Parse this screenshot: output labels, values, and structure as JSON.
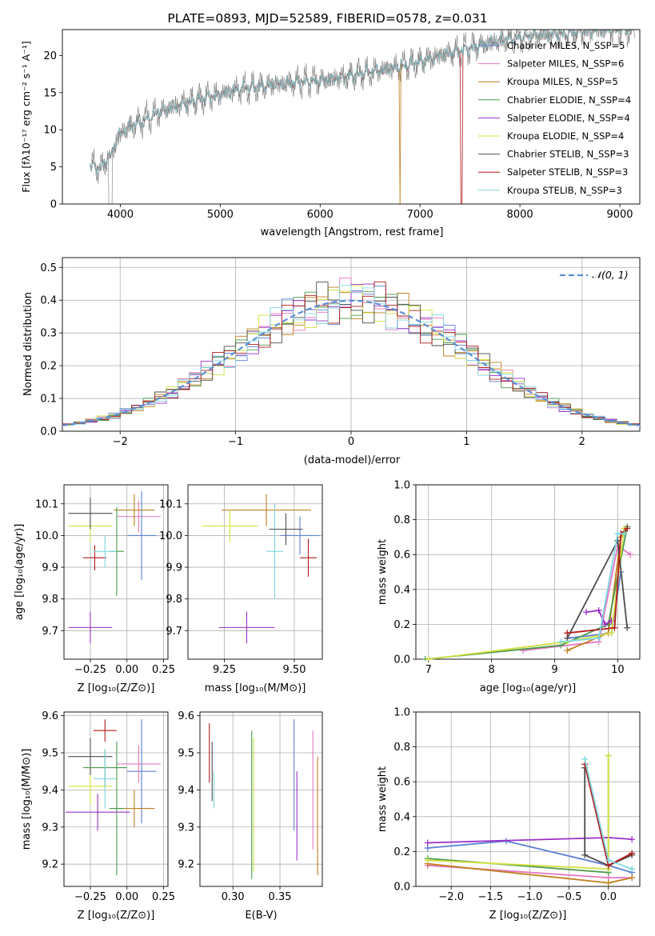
{
  "figure_title": "PLATE=0893, MJD=52589, FIBERID=0578, z=0.031",
  "chart_data": [
    {
      "id": "spectrum",
      "type": "line",
      "xlabel": "wavelength [Angstrom, rest frame]",
      "ylabel": "Flux [fλ10⁻¹⁷ erg cm⁻² s⁻¹ A⁻¹]",
      "xlim": [
        3420,
        9200
      ],
      "ylim": [
        0,
        23.5
      ],
      "xticks": [
        4000,
        5000,
        6000,
        7000,
        8000,
        9000
      ],
      "yticks": [
        0,
        5,
        10,
        15,
        20
      ],
      "data_trend": {
        "x": [
          3700,
          3800,
          3900,
          4000,
          4100,
          4200,
          4300,
          4500,
          4700,
          5000,
          5200,
          5500,
          5800,
          6000,
          6200,
          6500,
          6800,
          7000,
          7200,
          7500,
          7800,
          8000,
          8200,
          8400,
          8600,
          8800,
          9000
        ],
        "y": [
          5.2,
          4.8,
          6.5,
          9.5,
          10.5,
          11.0,
          11.8,
          13.0,
          13.8,
          14.8,
          15.5,
          16.0,
          16.5,
          16.6,
          17.0,
          17.8,
          18.5,
          19.2,
          20.0,
          21.0,
          22.0,
          22.5,
          22.8,
          22.9,
          23.2,
          23.5,
          23.5
        ]
      },
      "series": [
        {
          "name": "Chabrier MILES, N_SSP=5",
          "color": "#5b7fd4"
        },
        {
          "name": "Salpeter MILES, N_SSP=6",
          "color": "#e377c2"
        },
        {
          "name": "Kroupa MILES, N_SSP=5",
          "color": "#c07f1e"
        },
        {
          "name": "Chabrier ELODIE, N_SSP=4",
          "color": "#4c9a4c"
        },
        {
          "name": "Salpeter ELODIE, N_SSP=4",
          "color": "#9b30c8"
        },
        {
          "name": "Kroupa ELODIE, N_SSP=4",
          "color": "#d4e040"
        },
        {
          "name": "Chabrier STELIB, N_SSP=3",
          "color": "#4d4d4d"
        },
        {
          "name": "Salpeter STELIB, N_SSP=3",
          "color": "#b01c1c"
        },
        {
          "name": "Kroupa STELIB, N_SSP=3",
          "color": "#7fd6e0"
        }
      ]
    },
    {
      "id": "residuals",
      "type": "line",
      "xlabel": "(data-model)/error",
      "ylabel": "Normed distribution",
      "xlim": [
        -2.5,
        2.5
      ],
      "ylim": [
        0,
        0.53
      ],
      "xticks": [
        -2,
        -1,
        0,
        1,
        2
      ],
      "yticks": [
        0.0,
        0.1,
        0.2,
        0.3,
        0.4,
        0.5
      ],
      "legend": "𝒩(0, 1)",
      "legend_position": "top-right",
      "grid": true
    },
    {
      "id": "age_vs_Z",
      "type": "scatter",
      "xlabel": "Z [log₁₀(Z/Z⊙)]",
      "ylabel": "age  [log₁₀(age/yr)]",
      "xlim": [
        -0.43,
        0.28
      ],
      "ylim": [
        9.61,
        10.16
      ],
      "xticks": [
        -0.25,
        0.0,
        0.25
      ],
      "yticks": [
        9.7,
        9.8,
        9.9,
        10.0,
        10.1
      ],
      "grid": true,
      "points": [
        {
          "x": 0.1,
          "y": 10.0,
          "xerr": 0.1,
          "yerr": 0.14,
          "color": "#5b7fd4"
        },
        {
          "x": 0.08,
          "y": 10.06,
          "xerr": 0.15,
          "yerr": 0.05,
          "color": "#e377c2"
        },
        {
          "x": 0.05,
          "y": 10.08,
          "xerr": 0.14,
          "yerr": 0.05,
          "color": "#c07f1e"
        },
        {
          "x": -0.07,
          "y": 9.95,
          "xerr": 0.05,
          "yerr": 0.14,
          "color": "#4c9a4c"
        },
        {
          "x": -0.25,
          "y": 9.71,
          "xerr": 0.15,
          "yerr": 0.05,
          "color": "#9b30c8"
        },
        {
          "x": -0.25,
          "y": 10.03,
          "xerr": 0.15,
          "yerr": 0.05,
          "color": "#d4e040"
        },
        {
          "x": -0.25,
          "y": 10.07,
          "xerr": 0.15,
          "yerr": 0.05,
          "color": "#4d4d4d"
        },
        {
          "x": -0.22,
          "y": 9.93,
          "xerr": 0.08,
          "yerr": 0.04,
          "color": "#b01c1c"
        },
        {
          "x": -0.15,
          "y": 9.95,
          "xerr": 0.08,
          "yerr": 0.05,
          "color": "#7fd6e0"
        }
      ]
    },
    {
      "id": "age_vs_mass",
      "type": "scatter",
      "xlabel": "mass [log₁₀(M/M⊙)]",
      "xlim": [
        9.12,
        9.6
      ],
      "ylim": [
        9.61,
        10.16
      ],
      "xticks": [
        9.25,
        9.5
      ],
      "yticks": [
        9.7,
        9.8,
        9.9,
        10.0,
        10.1
      ],
      "grid": true,
      "points": [
        {
          "x": 9.52,
          "y": 10.0,
          "xerr": 0.07,
          "yerr": 0.06,
          "color": "#5b7fd4"
        },
        {
          "x": 9.4,
          "y": 10.08,
          "xerr": 0.16,
          "yerr": 0.05,
          "color": "#c07f1e"
        },
        {
          "x": 9.43,
          "y": 9.95,
          "xerr": 0.03,
          "yerr": 0.15,
          "color": "#7fd6e0"
        },
        {
          "x": 9.33,
          "y": 9.71,
          "xerr": 0.1,
          "yerr": 0.05,
          "color": "#9b30c8"
        },
        {
          "x": 9.27,
          "y": 10.03,
          "xerr": 0.1,
          "yerr": 0.05,
          "color": "#d4e040"
        },
        {
          "x": 9.47,
          "y": 10.02,
          "xerr": 0.06,
          "yerr": 0.05,
          "color": "#4d4d4d"
        },
        {
          "x": 9.55,
          "y": 9.93,
          "xerr": 0.03,
          "yerr": 0.06,
          "color": "#b01c1c"
        }
      ]
    },
    {
      "id": "weight_vs_age",
      "type": "line",
      "xlabel": "age  [log₁₀(age/yr)]",
      "ylabel": "mass weight",
      "xlim": [
        6.8,
        10.35
      ],
      "ylim": [
        0,
        1.0
      ],
      "xticks": [
        7,
        8,
        9,
        10
      ],
      "yticks": [
        0.0,
        0.2,
        0.4,
        0.6,
        0.8,
        1.0
      ],
      "grid": true,
      "series": [
        {
          "color": "#5b7fd4",
          "x": [
            9.2,
            9.9,
            10.05
          ],
          "y": [
            0.12,
            0.15,
            0.5
          ]
        },
        {
          "color": "#e377c2",
          "x": [
            8.5,
            9.7,
            10.0,
            10.2
          ],
          "y": [
            0.05,
            0.1,
            0.65,
            0.6
          ]
        },
        {
          "color": "#c07f1e",
          "x": [
            9.2,
            9.85,
            10.05,
            10.15
          ],
          "y": [
            0.05,
            0.15,
            0.7,
            0.75
          ]
        },
        {
          "color": "#4c9a4c",
          "x": [
            6.95,
            9.1,
            9.85,
            10.15
          ],
          "y": [
            0.0,
            0.08,
            0.2,
            0.76
          ]
        },
        {
          "color": "#9b30c8",
          "x": [
            9.5,
            9.7,
            9.8,
            9.9
          ],
          "y": [
            0.27,
            0.28,
            0.2,
            0.22
          ]
        },
        {
          "color": "#d4e040",
          "x": [
            7.0,
            9.2,
            9.9,
            10.1
          ],
          "y": [
            0.0,
            0.1,
            0.15,
            0.75
          ]
        },
        {
          "color": "#4d4d4d",
          "x": [
            9.2,
            10.0,
            10.15
          ],
          "y": [
            0.12,
            0.68,
            0.18
          ]
        },
        {
          "color": "#b01c1c",
          "x": [
            9.2,
            9.95,
            10.05,
            10.15
          ],
          "y": [
            0.15,
            0.18,
            0.72,
            0.75
          ]
        },
        {
          "color": "#7fd6e0",
          "x": [
            9.1,
            9.7,
            10.0,
            10.1
          ],
          "y": [
            0.1,
            0.12,
            0.72,
            0.72
          ]
        }
      ]
    },
    {
      "id": "mass_vs_Z",
      "type": "scatter",
      "xlabel": "Z [log₁₀(Z/Z⊙)]",
      "ylabel": "mass [log₁₀(M/M⊙)]",
      "xlim": [
        -0.43,
        0.28
      ],
      "ylim": [
        9.14,
        9.61
      ],
      "xticks": [
        -0.25,
        0.0,
        0.25
      ],
      "yticks": [
        9.2,
        9.3,
        9.4,
        9.5,
        9.6
      ],
      "grid": true,
      "points": [
        {
          "x": 0.1,
          "y": 9.45,
          "xerr": 0.1,
          "yerr": 0.14,
          "color": "#5b7fd4"
        },
        {
          "x": 0.08,
          "y": 9.47,
          "xerr": 0.15,
          "yerr": 0.05,
          "color": "#e377c2"
        },
        {
          "x": 0.05,
          "y": 9.35,
          "xerr": 0.14,
          "yerr": 0.05,
          "color": "#c07f1e"
        },
        {
          "x": -0.07,
          "y": 9.35,
          "xerr": 0.05,
          "yerr": 0.18,
          "color": "#4c9a4c"
        },
        {
          "x": -0.2,
          "y": 9.34,
          "xerr": 0.22,
          "yerr": 0.05,
          "color": "#9b30c8"
        },
        {
          "x": -0.25,
          "y": 9.41,
          "xerr": 0.15,
          "yerr": 0.05,
          "color": "#d4e040"
        },
        {
          "x": -0.25,
          "y": 9.49,
          "xerr": 0.15,
          "yerr": 0.05,
          "color": "#4d4d4d"
        },
        {
          "x": -0.15,
          "y": 9.46,
          "xerr": 0.15,
          "yerr": 0.05,
          "color": "#4c9a4c"
        },
        {
          "x": -0.15,
          "y": 9.56,
          "xerr": 0.08,
          "yerr": 0.03,
          "color": "#b01c1c"
        },
        {
          "x": -0.15,
          "y": 9.43,
          "xerr": 0.08,
          "yerr": 0.08,
          "color": "#7fd6e0"
        }
      ]
    },
    {
      "id": "mass_vs_EBV",
      "type": "scatter",
      "xlabel": "E(B-V)",
      "xlim": [
        0.265,
        0.395
      ],
      "ylim": [
        9.14,
        9.61
      ],
      "xticks": [
        0.3,
        0.35
      ],
      "yticks": [
        9.2,
        9.3,
        9.4,
        9.5,
        9.6
      ],
      "grid": true,
      "points": [
        {
          "x": 0.275,
          "y": 9.5,
          "xerr": 0.0,
          "yerr": 0.08,
          "color": "#b01c1c"
        },
        {
          "x": 0.278,
          "y": 9.45,
          "xerr": 0.0,
          "yerr": 0.08,
          "color": "#4d4d4d"
        },
        {
          "x": 0.28,
          "y": 9.4,
          "xerr": 0.0,
          "yerr": 0.05,
          "color": "#7fd6e0"
        },
        {
          "x": 0.32,
          "y": 9.36,
          "xerr": 0.0,
          "yerr": 0.2,
          "color": "#4c9a4c"
        },
        {
          "x": 0.322,
          "y": 9.36,
          "xerr": 0.0,
          "yerr": 0.18,
          "color": "#d4e040"
        },
        {
          "x": 0.365,
          "y": 9.44,
          "xerr": 0.0,
          "yerr": 0.15,
          "color": "#5b7fd4"
        },
        {
          "x": 0.368,
          "y": 9.33,
          "xerr": 0.0,
          "yerr": 0.12,
          "color": "#9b30c8"
        },
        {
          "x": 0.385,
          "y": 9.4,
          "xerr": 0.0,
          "yerr": 0.16,
          "color": "#e377c2"
        },
        {
          "x": 0.39,
          "y": 9.33,
          "xerr": 0.0,
          "yerr": 0.16,
          "color": "#c07f1e"
        }
      ]
    },
    {
      "id": "weight_vs_Z",
      "type": "line",
      "xlabel": "Z [log₁₀(Z/Z⊙)]",
      "ylabel": "mass weight",
      "xlim": [
        -2.45,
        0.4
      ],
      "ylim": [
        0,
        1.0
      ],
      "xticks": [
        -2.0,
        -1.5,
        -1.0,
        -0.5,
        0.0
      ],
      "yticks": [
        0.0,
        0.2,
        0.4,
        0.6,
        0.8,
        1.0
      ],
      "grid": true,
      "series": [
        {
          "color": "#5b7fd4",
          "x": [
            -2.3,
            -1.3,
            0.0,
            0.3
          ],
          "y": [
            0.22,
            0.26,
            0.12,
            0.08
          ]
        },
        {
          "color": "#e377c2",
          "x": [
            -2.3,
            0.0,
            0.3
          ],
          "y": [
            0.12,
            0.05,
            0.05
          ]
        },
        {
          "color": "#c07f1e",
          "x": [
            -2.3,
            0.0,
            0.3
          ],
          "y": [
            0.13,
            0.02,
            0.05
          ]
        },
        {
          "color": "#4c9a4c",
          "x": [
            -2.3,
            0.0,
            0.0
          ],
          "y": [
            0.16,
            0.08,
            0.75
          ]
        },
        {
          "color": "#9b30c8",
          "x": [
            -2.3,
            0.0,
            0.3
          ],
          "y": [
            0.25,
            0.28,
            0.27
          ]
        },
        {
          "color": "#d4e040",
          "x": [
            -2.3,
            0.0,
            0.0
          ],
          "y": [
            0.15,
            0.1,
            0.75
          ]
        },
        {
          "color": "#4d4d4d",
          "x": [
            -0.3,
            -0.3,
            0.0,
            0.3
          ],
          "y": [
            0.68,
            0.18,
            0.12,
            0.18
          ]
        },
        {
          "color": "#b01c1c",
          "x": [
            -0.3,
            0.0,
            0.3
          ],
          "y": [
            0.7,
            0.12,
            0.19
          ]
        },
        {
          "color": "#7fd6e0",
          "x": [
            -0.3,
            0.0,
            0.3
          ],
          "y": [
            0.73,
            0.15,
            0.1
          ]
        }
      ]
    }
  ]
}
